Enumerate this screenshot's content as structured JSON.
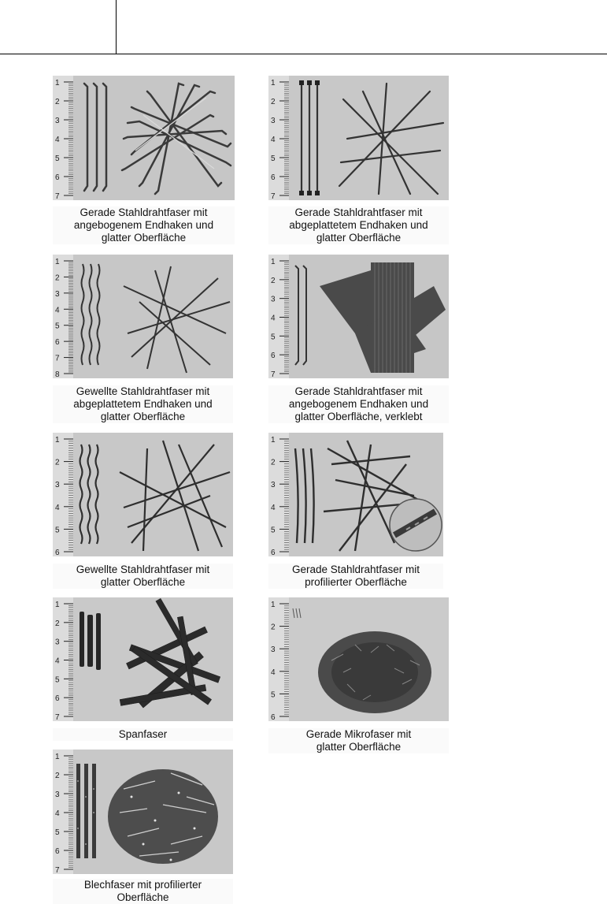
{
  "panels": [
    {
      "caption_lines": [
        "Gerade Stahldrahtfaser mit",
        "angebogenem Endhaken und",
        "glatter Oberfläche"
      ],
      "ruler_labels": [
        "1",
        "2",
        "3",
        "4",
        "5",
        "6",
        "7"
      ]
    },
    {
      "caption_lines": [
        "Gerade Stahldrahtfaser mit",
        "abgeplattetem Endhaken und",
        "glatter Oberfläche"
      ],
      "ruler_labels": [
        "1",
        "2",
        "3",
        "4",
        "5",
        "6",
        "7"
      ]
    },
    {
      "caption_lines": [
        "Gewellte Stahldrahtfaser mit",
        "abgeplattetem Endhaken und",
        "glatter Oberfläche"
      ],
      "ruler_labels": [
        "1",
        "2",
        "3",
        "4",
        "5",
        "6",
        "7",
        "8"
      ]
    },
    {
      "caption_lines": [
        "Gerade Stahldrahtfaser mit",
        "angebogenem Endhaken und",
        "glatter Oberfläche, verklebt"
      ],
      "ruler_labels": [
        "1",
        "2",
        "3",
        "4",
        "5",
        "6",
        "7"
      ]
    },
    {
      "caption_lines": [
        "Gewellte Stahldrahtfaser mit",
        "glatter Oberfläche"
      ],
      "ruler_labels": [
        "1",
        "2",
        "3",
        "4",
        "5",
        "6"
      ]
    },
    {
      "caption_lines": [
        "Gerade Stahldrahtfaser mit",
        "profilierter Oberfläche"
      ],
      "ruler_labels": [
        "1",
        "2",
        "3",
        "4",
        "5",
        "6"
      ]
    },
    {
      "caption_lines": [
        "Spanfaser"
      ],
      "ruler_labels": [
        "1",
        "2",
        "3",
        "4",
        "5",
        "6",
        "7"
      ]
    },
    {
      "caption_lines": [
        "Gerade Mikrofaser mit",
        "glatter Oberfläche"
      ],
      "ruler_labels": [
        "1",
        "2",
        "3",
        "4",
        "5",
        "6"
      ]
    },
    {
      "caption_lines": [
        "Blechfaser mit profilierter",
        "Oberfläche"
      ],
      "ruler_labels": [
        "1",
        "2",
        "3",
        "4",
        "5",
        "6",
        "7"
      ]
    }
  ]
}
